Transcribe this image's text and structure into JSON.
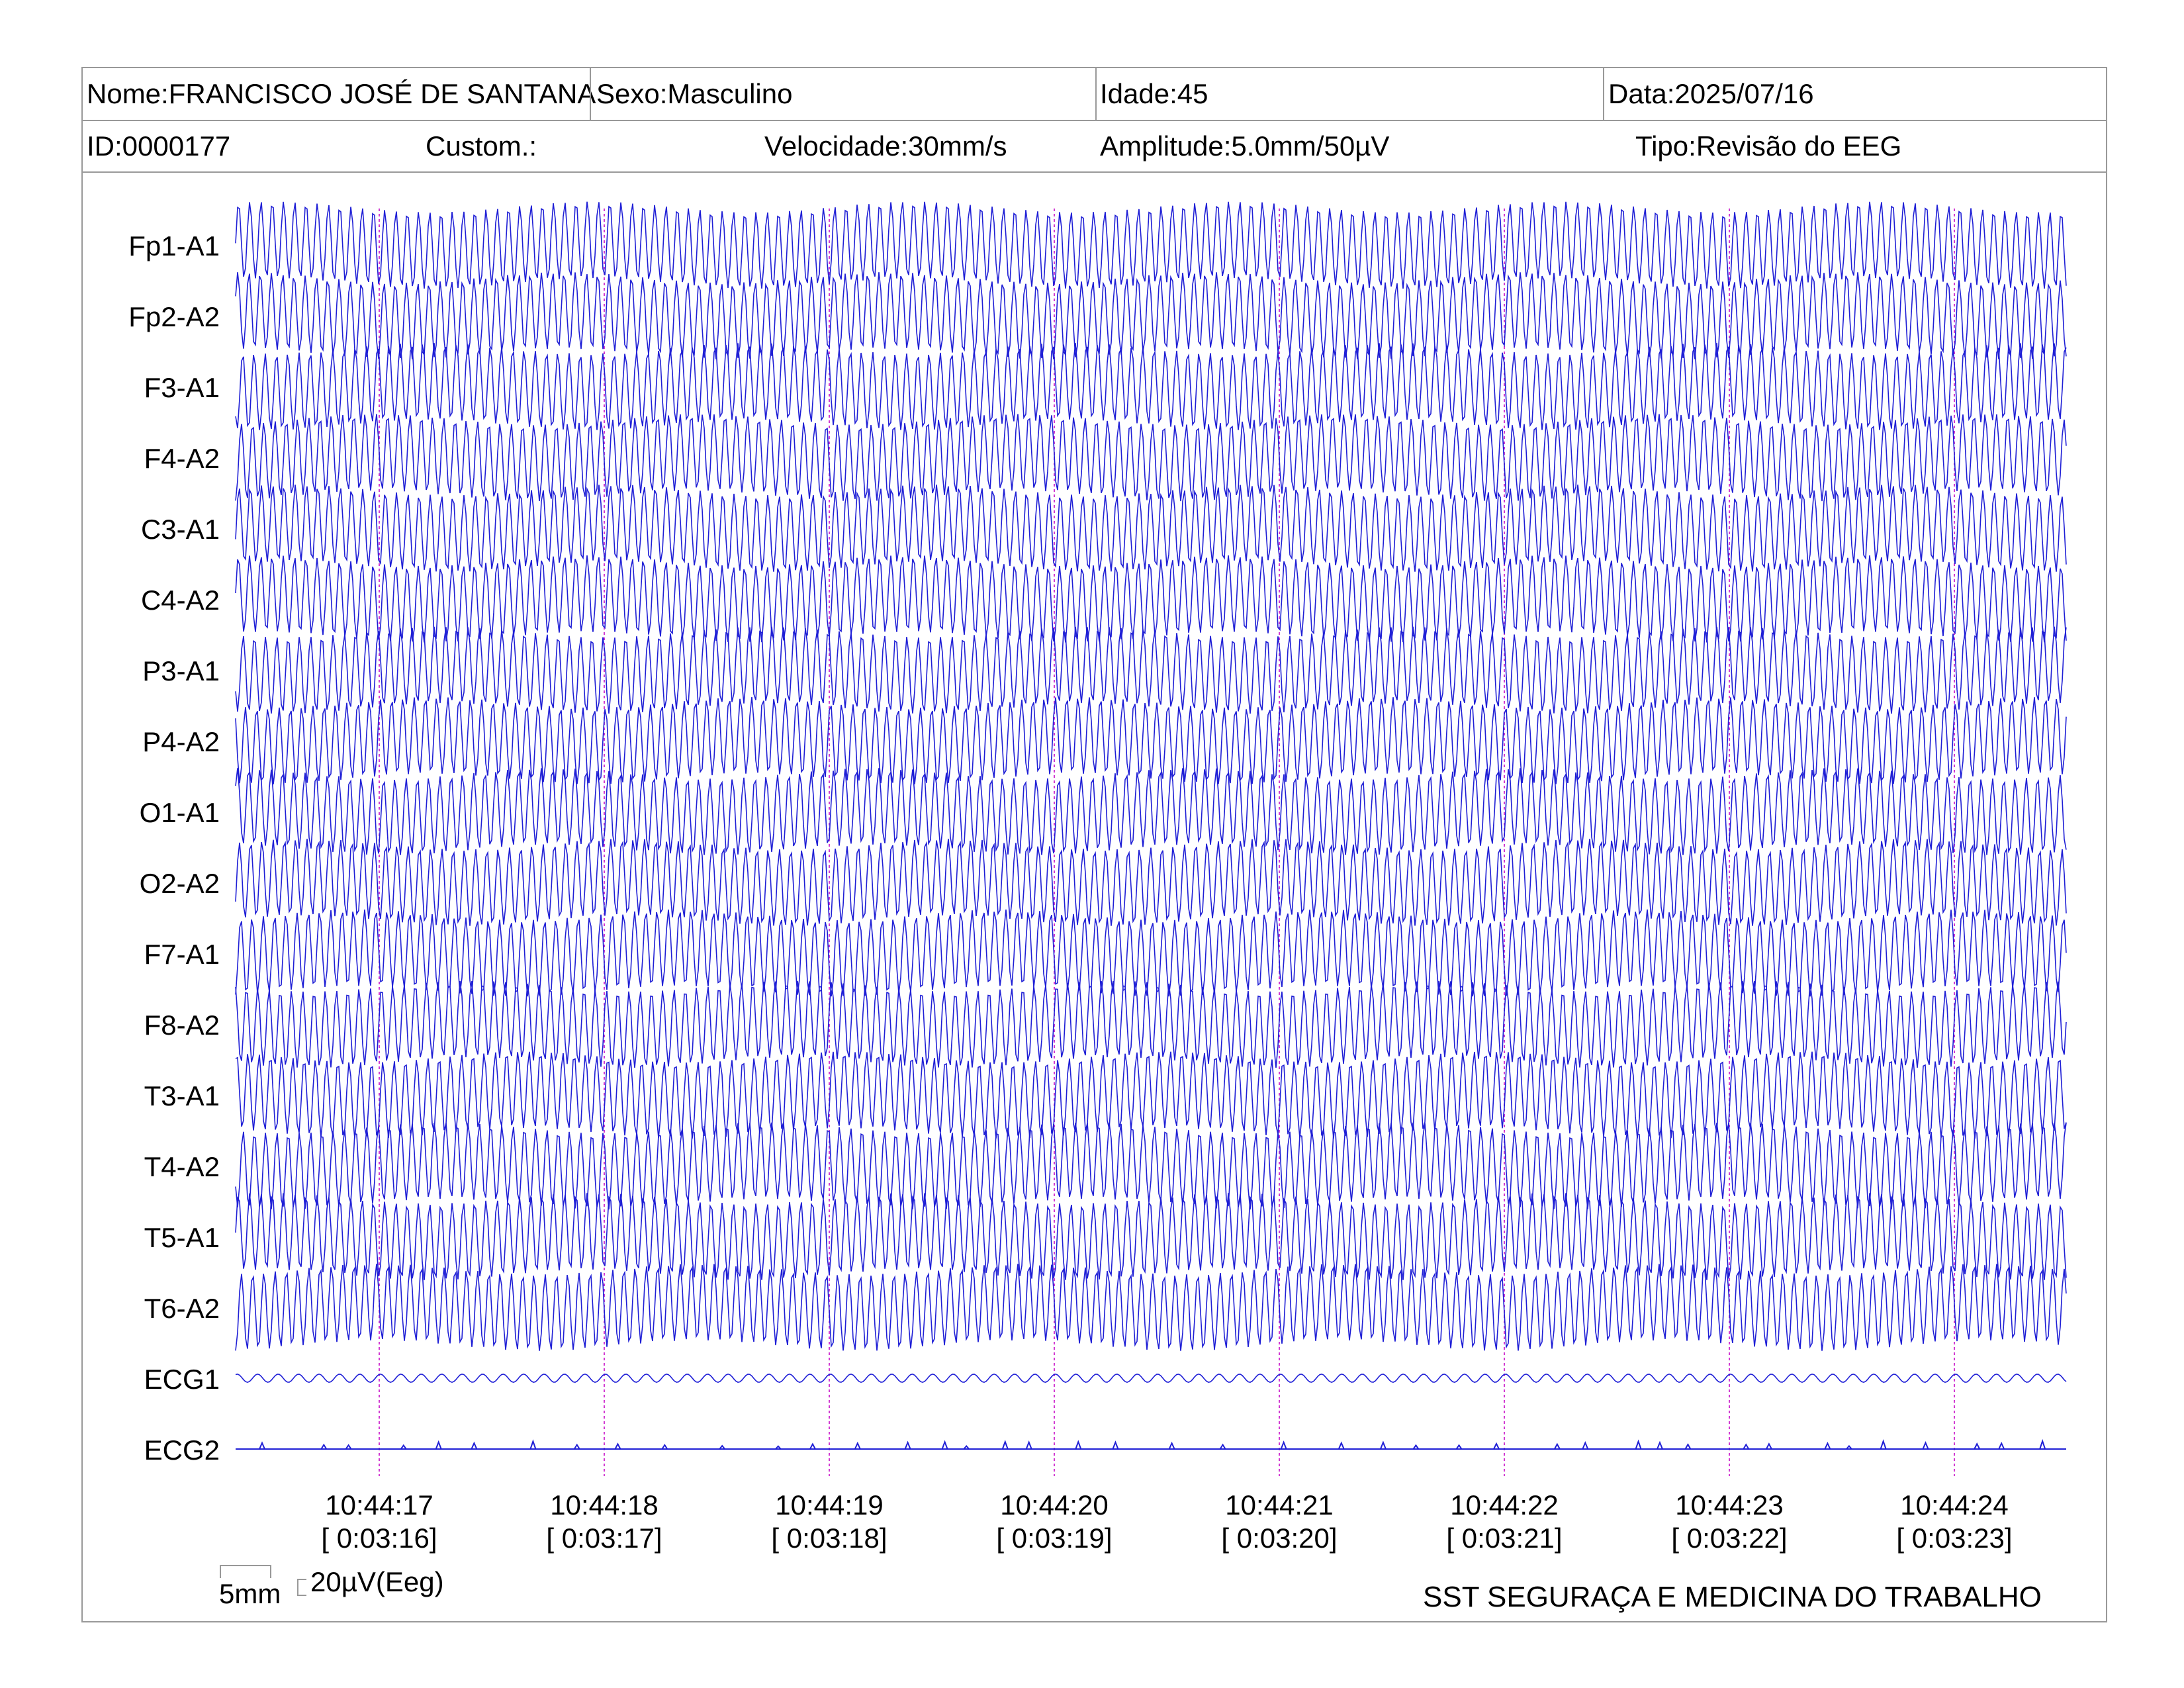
{
  "header": {
    "nome": "Nome:FRANCISCO JOSÉ DE SANTANA",
    "sexo": "Sexo:Masculino",
    "idade": "Idade:45",
    "data": "Data:2025/07/16",
    "id": "ID:0000177",
    "custom": "Custom.:",
    "velocidade": "Velocidade:30mm/s",
    "amplitude": "Amplitude:5.0mm/50µV",
    "tipo": "Tipo:Revisão do EEG"
  },
  "scale": {
    "time_label": "5mm",
    "amp_label": "20µV(Eeg)"
  },
  "footer": "SST SEGURAÇA E MEDICINA DO TRABALHO",
  "colors": {
    "trace": "#1f1fd6",
    "marker": "#d23bd2",
    "border": "#999999"
  },
  "chart_data": {
    "type": "line",
    "title": "",
    "xlabel": "",
    "ylabel": "",
    "grid": false,
    "legend": "none",
    "channels": [
      "Fp1-A1",
      "Fp2-A2",
      "F3-A1",
      "F4-A2",
      "C3-A1",
      "C4-A2",
      "P3-A1",
      "P4-A2",
      "O1-A1",
      "O2-A2",
      "F7-A1",
      "F8-A2",
      "T3-A1",
      "T4-A2",
      "T5-A1",
      "T6-A2",
      "ECG1",
      "ECG2"
    ],
    "time_markers": [
      {
        "clock": "10:44:17",
        "elapsed": "[ 0:03:16]"
      },
      {
        "clock": "10:44:18",
        "elapsed": "[ 0:03:17]"
      },
      {
        "clock": "10:44:19",
        "elapsed": "[ 0:03:18]"
      },
      {
        "clock": "10:44:20",
        "elapsed": "[ 0:03:19]"
      },
      {
        "clock": "10:44:21",
        "elapsed": "[ 0:03:20]"
      },
      {
        "clock": "10:44:22",
        "elapsed": "[ 0:03:21]"
      },
      {
        "clock": "10:44:23",
        "elapsed": "[ 0:03:22]"
      },
      {
        "clock": "10:44:24",
        "elapsed": "[ 0:03:23]"
      }
    ],
    "eeg_dominant_frequency_hz": 20,
    "eeg_amplitude_uv": 60,
    "ecg1_frequency_hz": 11,
    "ecg1_amplitude_uv": 4,
    "ecg2": "near-flat baseline with small intermittent spikes"
  }
}
